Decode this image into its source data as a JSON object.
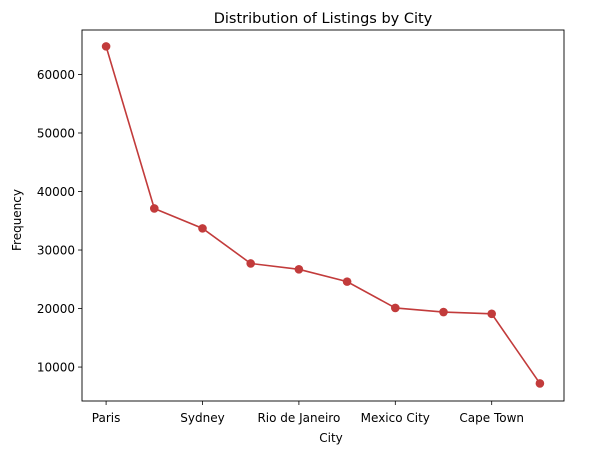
{
  "chart_data": {
    "type": "line",
    "title": "Distribution of Listings by City",
    "xlabel": "City",
    "ylabel": "Frequency",
    "x_tick_labels": [
      "Paris",
      "Sydney",
      "Rio de Janeiro",
      "Mexico City",
      "Cape Town"
    ],
    "x_tick_positions": [
      0,
      2,
      4,
      6,
      8
    ],
    "y_ticks": [
      10000,
      20000,
      30000,
      40000,
      50000,
      60000
    ],
    "y_tick_labels": [
      "10000",
      "20000",
      "30000",
      "40000",
      "50000",
      "60000"
    ],
    "ylim": [
      4200,
      67600
    ],
    "xlim": [
      -0.5,
      9.5
    ],
    "grid": false,
    "color": "#c23b3b",
    "series": [
      {
        "values": [
          64800,
          37100,
          33700,
          27700,
          26700,
          24600,
          20100,
          19400,
          19100,
          7200
        ]
      }
    ]
  }
}
